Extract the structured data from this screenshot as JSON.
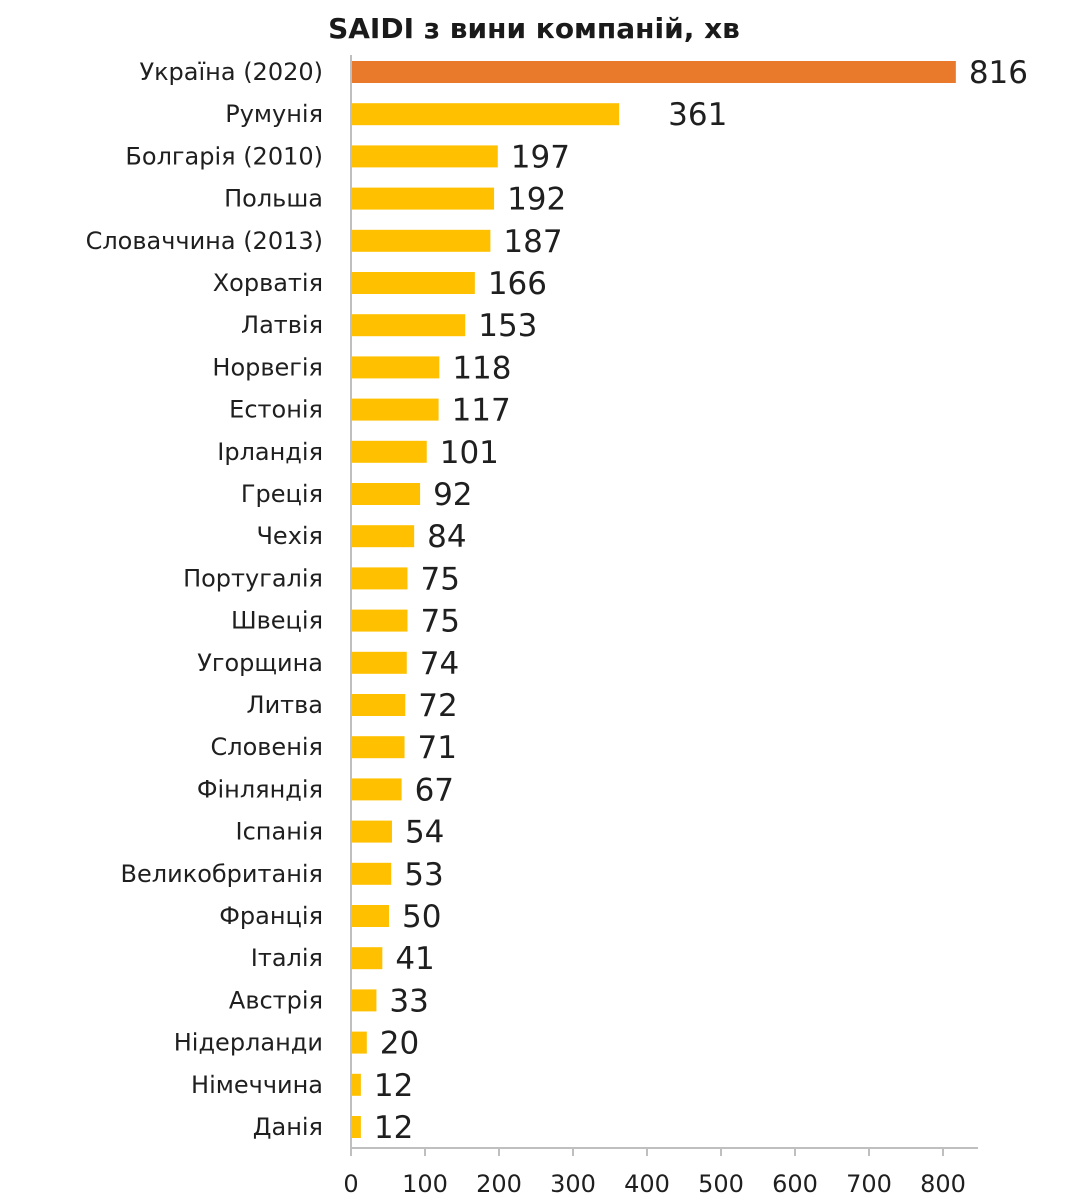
{
  "chart_data": {
    "type": "bar",
    "orientation": "horizontal",
    "title": "SAIDI з вини компаній, хв",
    "xlabel": "",
    "ylabel": "",
    "categories": [
      "Україна (2020)",
      "Румунія",
      "Болгарія (2010)",
      "Польша",
      "Словаччина (2013)",
      "Хорватія",
      "Латвія",
      "Норвегія",
      "Естонія",
      "Ірландія",
      "Греція",
      "Чехія",
      "Португалія",
      "Швеція",
      "Угорщина",
      "Литва",
      "Словенія",
      "Фінляндія",
      "Іспанія",
      "Великобританія",
      "Франція",
      "Італія",
      "Австрія",
      "Нідерланди",
      "Німеччина",
      "Данія"
    ],
    "values": [
      816,
      361,
      197,
      192,
      187,
      166,
      153,
      118,
      117,
      101,
      92,
      84,
      75,
      75,
      74,
      72,
      71,
      67,
      54,
      53,
      50,
      41,
      33,
      20,
      12,
      12
    ],
    "highlight_index": 0,
    "colors": {
      "highlight": "#E97A2C",
      "default": "#FFC000",
      "axis": "#BFBFBF",
      "text": "#1F1F1F"
    },
    "xlim": [
      0,
      850
    ],
    "xticks": [
      0,
      100,
      200,
      300,
      400,
      500,
      600,
      700,
      800
    ],
    "grid": false,
    "legend": "none"
  }
}
